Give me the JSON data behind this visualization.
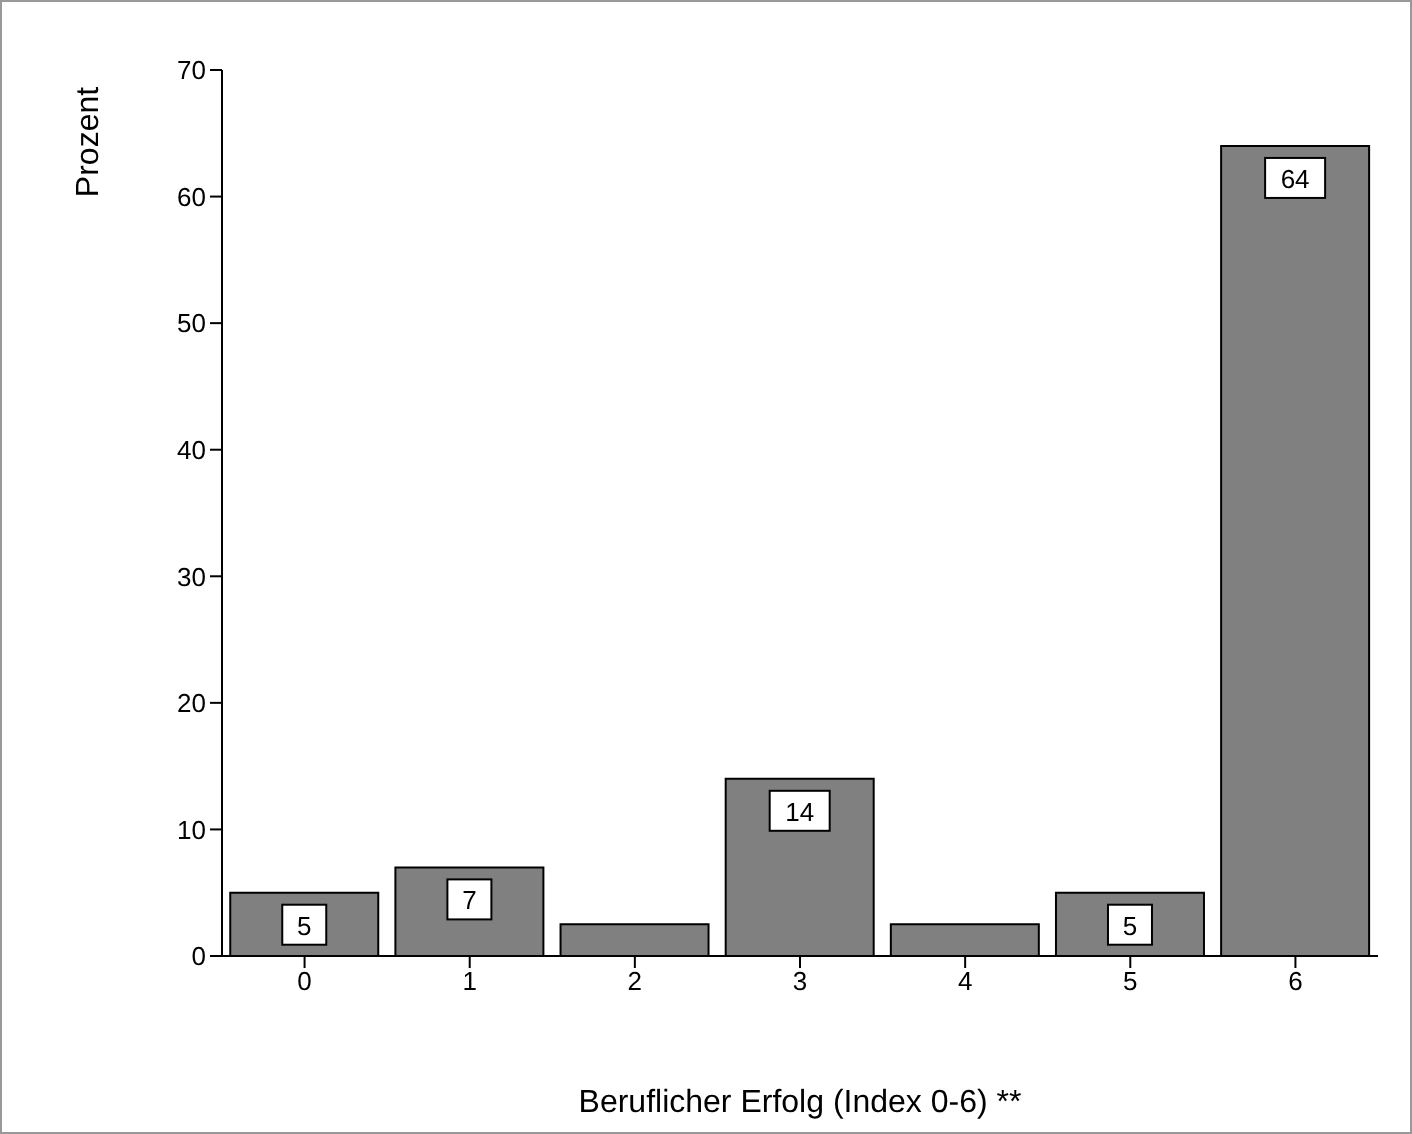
{
  "chart_data": {
    "type": "bar",
    "xlabel": "Beruflicher Erfolg (Index 0-6) **",
    "ylabel": "Prozent",
    "categories": [
      "0",
      "1",
      "2",
      "3",
      "4",
      "5",
      "6"
    ],
    "values": [
      5,
      7,
      2.5,
      14,
      2.5,
      5,
      64
    ],
    "value_labels": [
      "5",
      "7",
      null,
      "14",
      null,
      "5",
      "64"
    ],
    "color": "#808080",
    "ylim": [
      0,
      70
    ],
    "yticks": [
      0,
      10,
      20,
      30,
      40,
      50,
      60,
      70
    ],
    "grid": false,
    "legend": false
  }
}
